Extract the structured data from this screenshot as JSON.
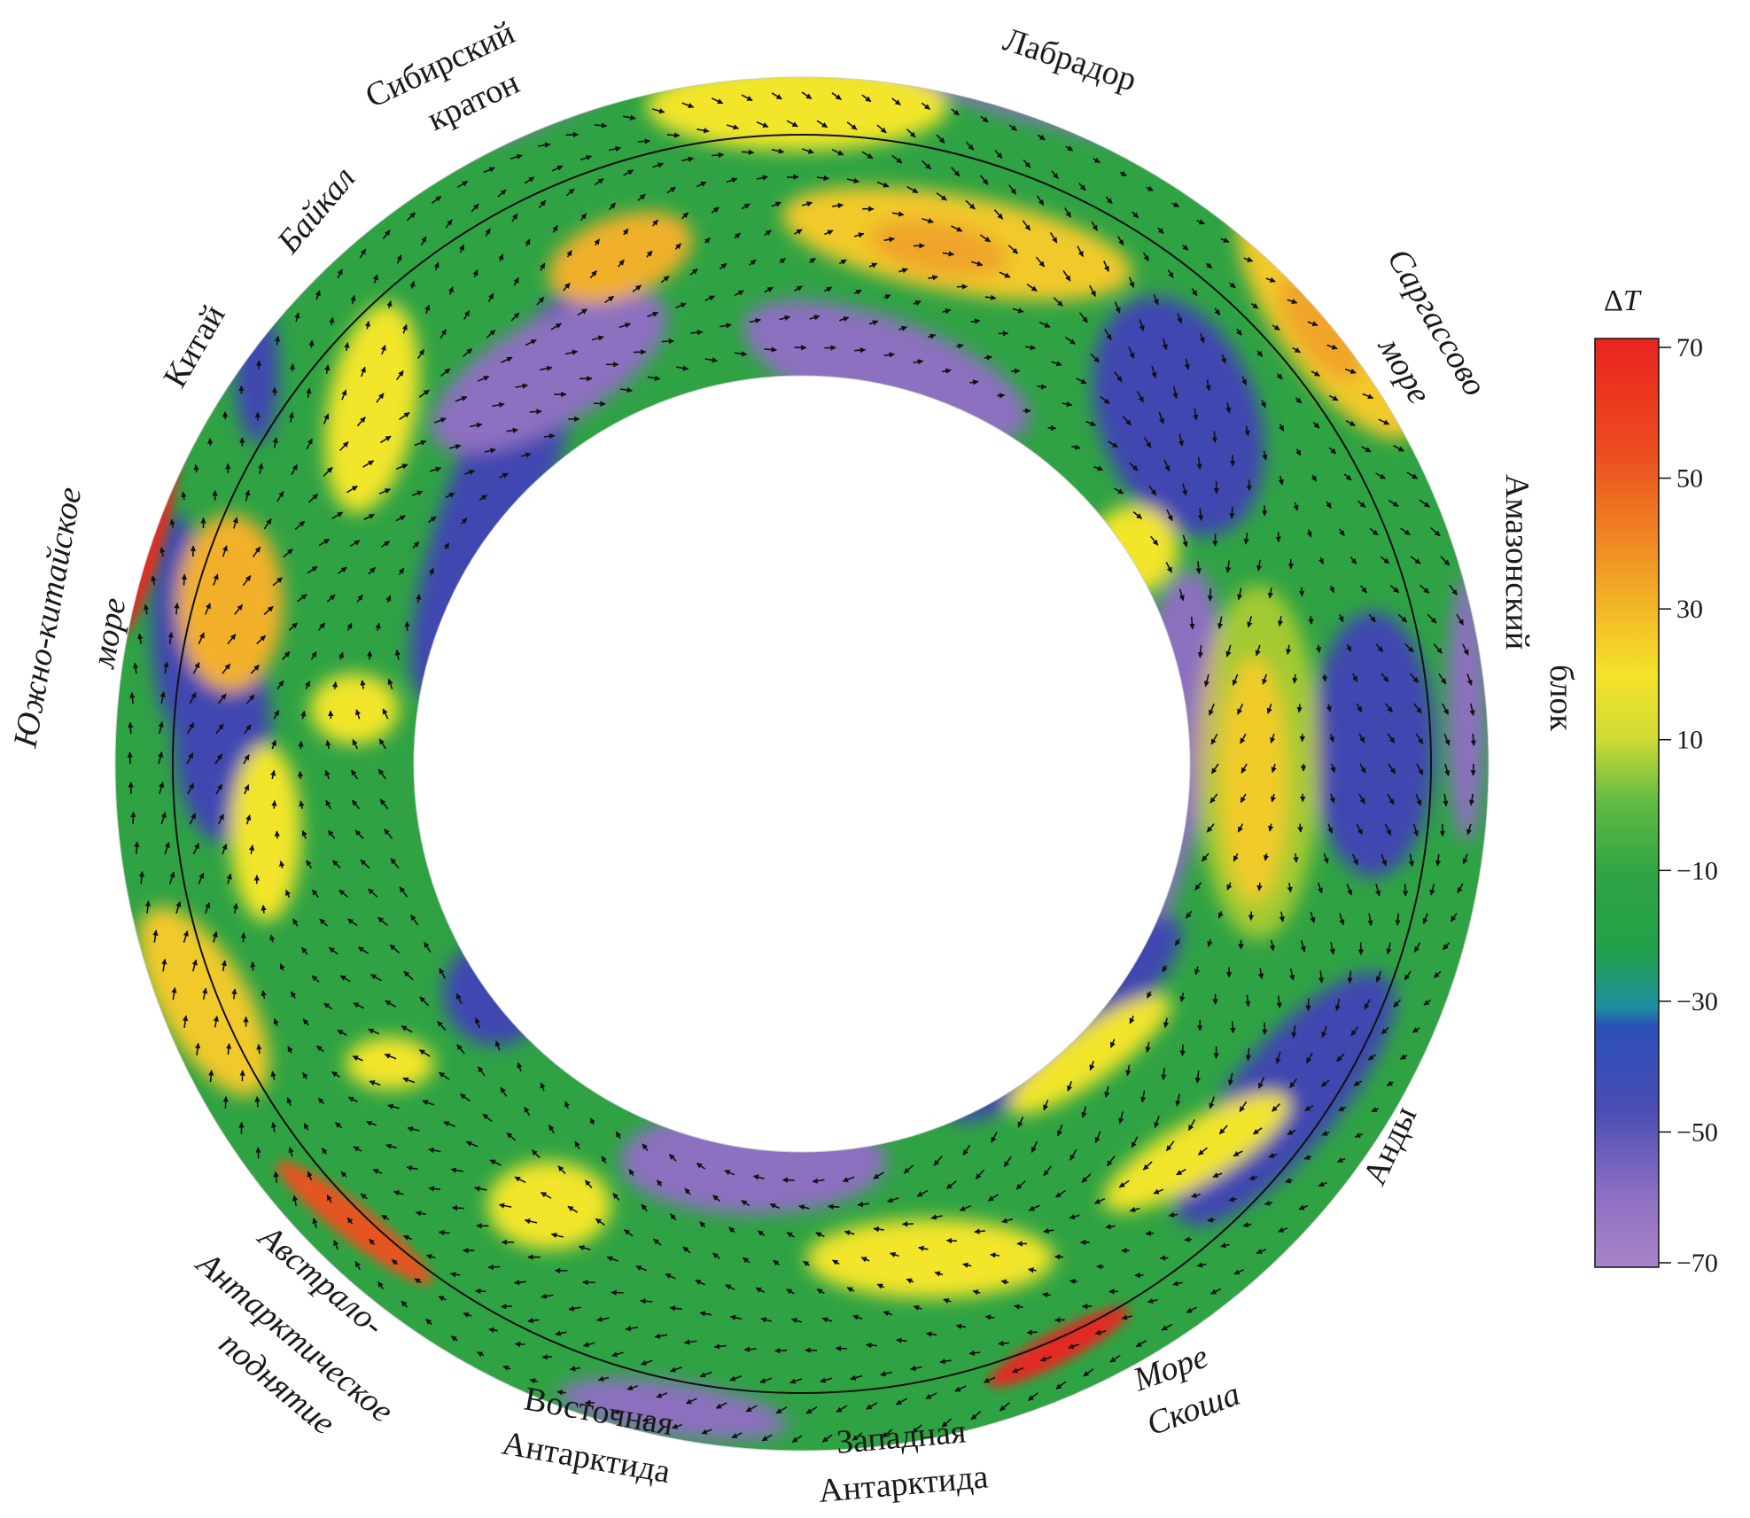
{
  "figure": {
    "colorbar": {
      "title_delta": "Δ",
      "title_var": "T",
      "ticks": [
        "70",
        "50",
        "30",
        "10",
        "−10",
        "−30",
        "−50",
        "−70"
      ],
      "colors": [
        "#e8241f",
        "#ee6a1f",
        "#f2a321",
        "#f5e72a",
        "#b8d93a",
        "#31a84a",
        "#1fa33f",
        "#2d56b8",
        "#4a4fb5",
        "#9a76c2",
        "#a47ec6"
      ]
    },
    "palette": {
      "purple": "#8d6fc0",
      "blue": "#3f46b0",
      "green": "#2fa344",
      "yellow": "#f2e52a",
      "orange": "#f0a52a",
      "red": "#e22a20"
    },
    "labels": {
      "siberian_craton_1": "Сибирский",
      "siberian_craton_2": "кратон",
      "labrador": "Лабрадор",
      "baikal": "Байкал",
      "china": "Китай",
      "sargasso_1": "Саргассово",
      "sargasso_2": "море",
      "south_china_1": "Южно-китайское",
      "south_china_2": "море",
      "amazon_1": "Амазонский",
      "amazon_2": "блок",
      "andes": "Анды",
      "austral_1": "Австрало-",
      "austral_2": "Антарктическое",
      "austral_3": "поднятие",
      "east_ant_1": "Восточная",
      "east_ant_2": "Антарктида",
      "west_ant_1": "Западная",
      "west_ant_2": "Антарктида",
      "scotia_1": "Море",
      "scotia_2": "Скоша"
    }
  }
}
